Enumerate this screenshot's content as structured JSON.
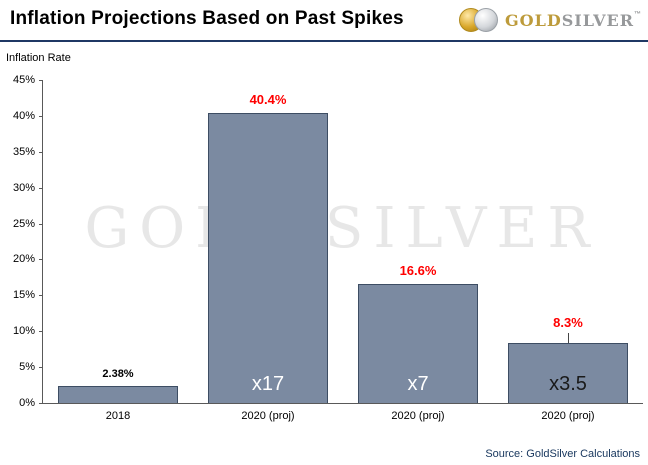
{
  "header": {
    "title": "Inflation Projections Based on Past Spikes",
    "logo": {
      "gold_text": "GOLD",
      "silver_text": "SILVER",
      "trademark": "™",
      "gold_color": "#BD9B3B",
      "silver_color": "#97999B"
    }
  },
  "chart_data": {
    "type": "bar",
    "title": "Inflation Projections Based on Past Spikes",
    "ylabel": "Inflation Rate",
    "ylim": [
      0,
      45
    ],
    "yticks": [
      "45%",
      "40%",
      "35%",
      "30%",
      "25%",
      "20%",
      "15%",
      "10%",
      "5%",
      "0%"
    ],
    "categories": [
      "2018",
      "2020 (proj)",
      "2020 (proj)",
      "2020 (proj)"
    ],
    "values": [
      2.38,
      40.4,
      16.6,
      8.3
    ],
    "value_labels": [
      "2.38%",
      "40.4%",
      "16.6%",
      "8.3%"
    ],
    "value_label_colors": [
      "#000000",
      "#ff0000",
      "#ff0000",
      "#ff0000"
    ],
    "bar_labels": [
      "",
      "x17",
      "x7",
      "x3.5"
    ],
    "bar_label_colors": [
      "",
      "#ffffff",
      "#ffffff",
      "#1a1a1a"
    ],
    "leader_lines": [
      false,
      false,
      false,
      true
    ],
    "bar_color": "#7b8aa1",
    "bar_border_color": "#3d4d63",
    "grid": false,
    "legend": false,
    "watermark": "GOLD SILVER"
  },
  "footer": {
    "source": "Source: GoldSilver Calculations"
  }
}
